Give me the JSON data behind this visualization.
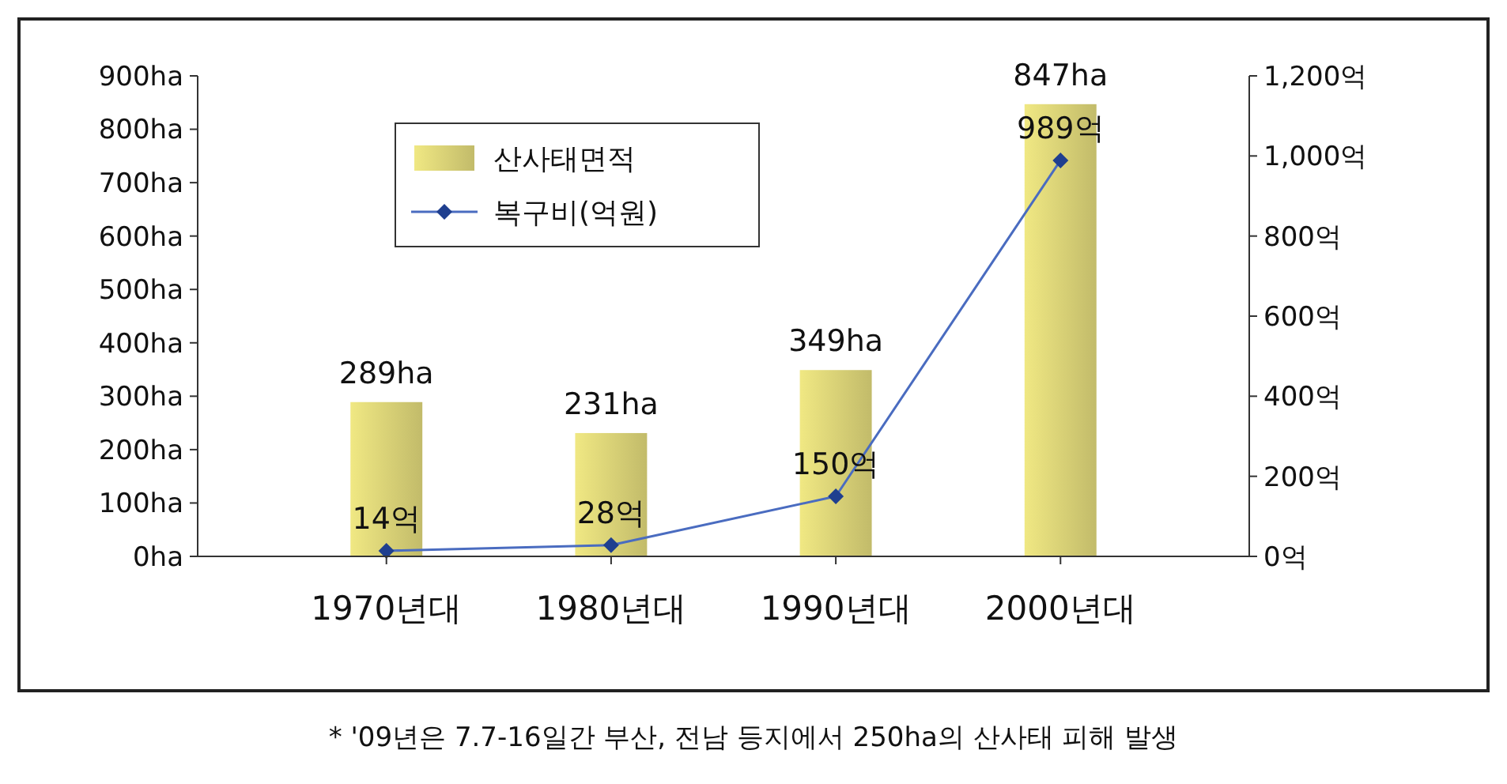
{
  "chart_data": {
    "type": "bar",
    "categories": [
      "1970년대",
      "1980년대",
      "1990년대",
      "2000년대"
    ],
    "series": [
      {
        "name": "산사태면적",
        "color": "#c2bb6a",
        "values": [
          289,
          231,
          349,
          847
        ],
        "value_labels": [
          "289ha",
          "231ha",
          "349ha",
          "847ha"
        ]
      },
      {
        "name": "복구비(억원)",
        "type": "line",
        "axis": "y2",
        "color": "#4a6cc0",
        "marker": "diamond",
        "values": [
          14,
          28,
          150,
          989
        ],
        "value_labels": [
          "14억",
          "28억",
          "150억",
          "989억"
        ]
      }
    ],
    "ylim": [
      0,
      900
    ],
    "yticks": [
      {
        "value": 0,
        "label": "0ha"
      },
      {
        "value": 100,
        "label": "100ha"
      },
      {
        "value": 200,
        "label": "200ha"
      },
      {
        "value": 300,
        "label": "300ha"
      },
      {
        "value": 400,
        "label": "400ha"
      },
      {
        "value": 500,
        "label": "500ha"
      },
      {
        "value": 600,
        "label": "600ha"
      },
      {
        "value": 700,
        "label": "700ha"
      },
      {
        "value": 800,
        "label": "800ha"
      },
      {
        "value": 900,
        "label": "900ha"
      }
    ],
    "y2lim": [
      0,
      1200
    ],
    "y2ticks": [
      {
        "value": 0,
        "label": "0억"
      },
      {
        "value": 200,
        "label": "200억"
      },
      {
        "value": 400,
        "label": "400억"
      },
      {
        "value": 600,
        "label": "600억"
      },
      {
        "value": 800,
        "label": "800억"
      },
      {
        "value": 1000,
        "label": "1,000억"
      },
      {
        "value": 1200,
        "label": "1,200억"
      }
    ],
    "grid": false,
    "legend": "top left",
    "annotations": [
      "* '09년은 7.7-16일간 부산, 전남 등지에서 250ha의 산사태 피해 발생"
    ]
  }
}
